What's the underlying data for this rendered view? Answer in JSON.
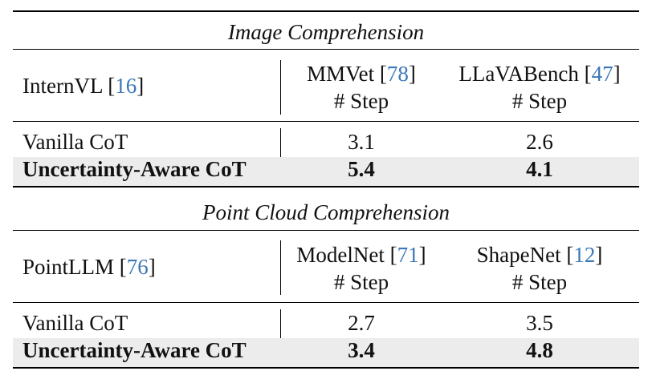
{
  "sections": [
    {
      "title": "Image Comprehension",
      "model": "InternVL",
      "model_cite": "16",
      "benchmarks": [
        {
          "name": "MMVet",
          "cite": "78",
          "metric": "# Step"
        },
        {
          "name": "LLaVABench",
          "cite": "47",
          "metric": "# Step"
        }
      ],
      "rows": [
        {
          "method": "Vanilla CoT",
          "values": [
            "3.1",
            "2.6"
          ],
          "highlight": false
        },
        {
          "method": "Uncertainty-Aware CoT",
          "values": [
            "5.4",
            "4.1"
          ],
          "highlight": true
        }
      ]
    },
    {
      "title": "Point Cloud Comprehension",
      "model": "PointLLM",
      "model_cite": "76",
      "benchmarks": [
        {
          "name": "ModelNet",
          "cite": "71",
          "metric": "# Step"
        },
        {
          "name": "ShapeNet",
          "cite": "12",
          "metric": "# Step"
        }
      ],
      "rows": [
        {
          "method": "Vanilla CoT",
          "values": [
            "2.7",
            "3.5"
          ],
          "highlight": false
        },
        {
          "method": "Uncertainty-Aware CoT",
          "values": [
            "3.4",
            "4.8"
          ],
          "highlight": true
        }
      ]
    }
  ],
  "colors": {
    "citation": "#3b78b8",
    "highlight_row": "#ececec"
  }
}
